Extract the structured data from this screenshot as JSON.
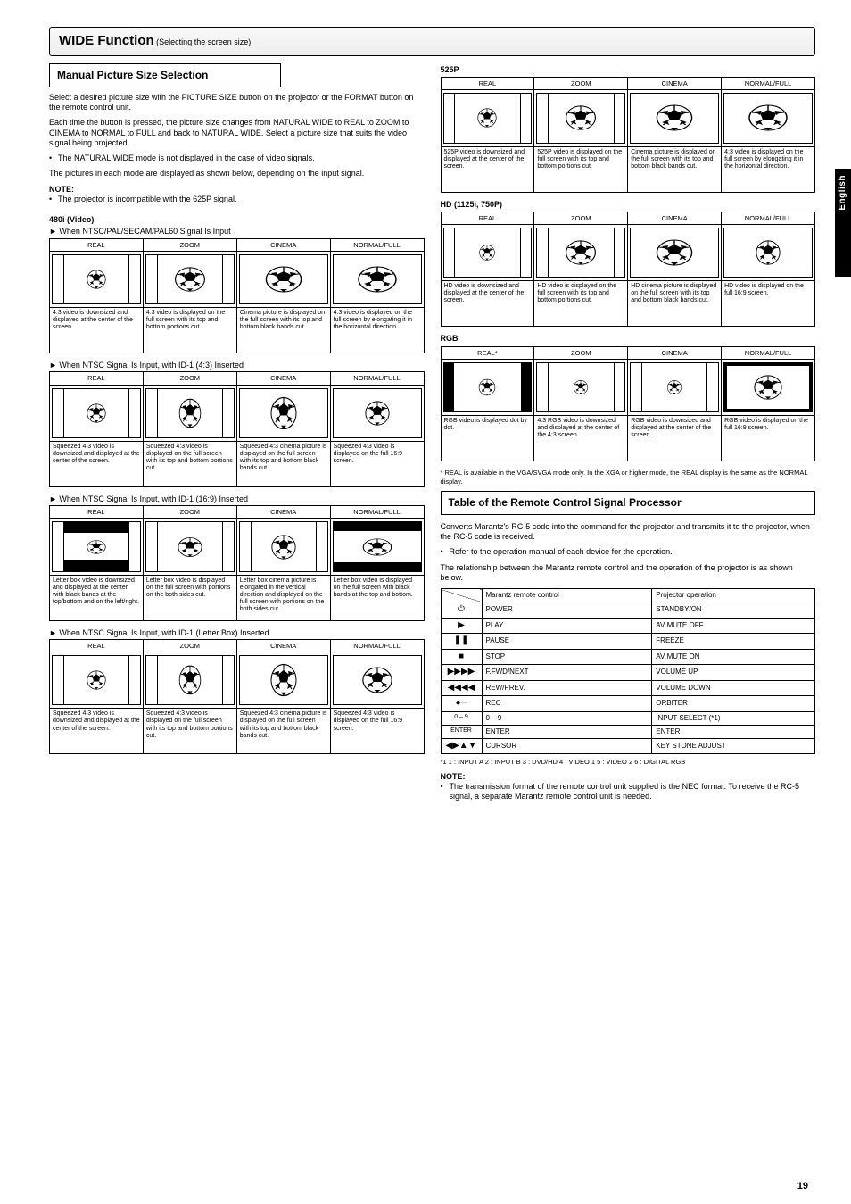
{
  "page_number": "19",
  "header": {
    "title": "WIDE Function",
    "subtitle": "(Selecting the screen size)"
  },
  "manual_section": {
    "title": "Manual Picture Size Selection",
    "p1": "Select a desired picture size with the PICTURE SIZE button on the projector or the FORMAT button on the remote control unit.",
    "p2": "Each time the button is pressed, the picture size changes from NATURAL WIDE to REAL to ZOOM to CINEMA to NORMAL to FULL and back to NATURAL WIDE. Select a picture size that suits the video signal being projected.",
    "bullet1": "The NATURAL WIDE mode is not displayed in the case of video signals.",
    "p3": "The pictures in each mode are displayed as shown below, depending on the input signal.",
    "note_label": "NOTE:",
    "note_text": "The projector is incompatible with the 625P signal."
  },
  "signal_groups": {
    "g_480video": {
      "sig_label": "480i (Video)",
      "tables": [
        {
          "video_label": "► When NTSC/PAL/SECAM/PAL60 Signal Is Input",
          "heads": [
            "REAL",
            "ZOOM",
            "CINEMA",
            "NORMAL/FULL"
          ],
          "screens": [
            "r43_ball_small",
            "r43_ball_wide",
            "r169_ball_wide",
            "r169_ball_stretch"
          ],
          "descs": [
            "4:3 video is downsized and displayed at the center of the screen.",
            "4:3 video is displayed on the full screen with its top and bottom portions cut.",
            "Cinema picture is displayed on the full screen with its top and bottom black bands cut.",
            "4:3 video is displayed on the full screen by elongating it in the horizontal direction."
          ]
        },
        {
          "video_label": "► When NTSC Signal Is Input, with ID-1 (4:3) Inserted",
          "heads": [
            "REAL",
            "ZOOM",
            "CINEMA",
            "NORMAL/FULL"
          ],
          "screens": [
            "r43_ball_small",
            "r43_ball_tall",
            "r169_ball_tall",
            "r169_ball"
          ],
          "descs": [
            "Squeezed 4:3 video is downsized and displayed at the center of the screen.",
            "Squeezed 4:3 video is displayed on the full screen with its top and bottom portions cut.",
            "Squeezed 4:3 cinema picture is displayed on the full screen with its top and bottom black bands cut.",
            "Squeezed 4:3 video is displayed on the full 16:9 screen."
          ]
        },
        {
          "video_label": "► When NTSC Signal Is Input, with ID-1 (16:9) Inserted",
          "heads": [
            "REAL",
            "ZOOM",
            "CINEMA",
            "NORMAL/FULL"
          ],
          "screens": [
            "r4_letterbox",
            "r4_letterbox_z",
            "r4_letterbox_c",
            "r169_lb"
          ],
          "descs": [
            "Letter box video is downsized and displayed at the center with black bands at the top/bottom and on the left/right.",
            "Letter box video is displayed on the full screen with portions on the both sides cut.",
            "Letter box cinema picture is elongated in the vertical direction and displayed on the full screen with portions on the both sides cut.",
            "Letter box video is displayed on the full screen with black bands at the top and bottom."
          ]
        },
        {
          "video_label": "► When NTSC Signal Is Input, with ID-1 (Letter Box) Inserted",
          "heads": [
            "REAL",
            "ZOOM",
            "CINEMA",
            "NORMAL/FULL"
          ],
          "screens": [
            "r43_ball_small",
            "r43_ball_tall",
            "r169_ball_tall",
            "r169_full"
          ],
          "descs": [
            "Squeezed 4:3 video is downsized and displayed at the center of the screen.",
            "Squeezed 4:3 video is displayed on the full screen with its top and bottom portions cut.",
            "Squeezed 4:3 cinema picture is displayed on the full screen with its top and bottom black bands cut.",
            "Squeezed 4:3 video is displayed on the full 16:9 screen."
          ]
        }
      ]
    },
    "g_525p": {
      "sig_label": "525P",
      "tables": [
        {
          "video_label": "",
          "heads": [
            "REAL",
            "ZOOM",
            "CINEMA",
            "NORMAL/FULL"
          ],
          "screens": [
            "r43_ball_small",
            "r43_ball_wide",
            "r169_ball_wide",
            "r169_ball_stretch"
          ],
          "descs": [
            "525P video is downsized and displayed at the center of the screen.",
            "525P video is displayed on the full screen with its top and bottom portions cut.",
            "Cinema picture is displayed on the full screen with its top and bottom black bands cut.",
            "4:3 video is displayed on the full screen by elongating it in the horizontal direction."
          ]
        }
      ]
    },
    "g_hd": {
      "sig_label": "HD (1125i, 750P)",
      "tables": [
        {
          "video_label": "",
          "heads": [
            "REAL",
            "ZOOM",
            "CINEMA",
            "NORMAL/FULL"
          ],
          "screens": [
            "r43_ball_small_sq",
            "r43_ball_wide",
            "r169_ball_wide",
            "r169_ball"
          ],
          "descs": [
            "HD video is downsized and displayed at the center of the screen.",
            "HD video is displayed on the full screen with its top and bottom portions cut.",
            "HD cinema picture is displayed on the full screen with its top and bottom black bands cut.",
            "HD video is displayed on the full 16:9 screen."
          ]
        }
      ]
    },
    "g_rgb": {
      "sig_label": "RGB",
      "tables": [
        {
          "video_label": "",
          "heads": [
            "REAL*",
            "ZOOM",
            "CINEMA",
            "NORMAL/FULL"
          ],
          "screens": [
            "r_sidebars",
            "r43_ball_small_t",
            "r43_ball_small_t",
            "r169_black"
          ],
          "descs": [
            "RGB video is displayed dot by dot.",
            "4:3 RGB video is downsized and displayed at the center of the 4:3 screen.",
            "RGB video is downsized and displayed at the center of the screen.",
            "RGB video is displayed on the full 16:9 screen."
          ],
          "footnote": "* REAL is available in the VGA/SVGA mode only. In the XGA or higher mode, the REAL display is the same as the NORMAL display."
        }
      ]
    }
  },
  "remote": {
    "title": "Table of the Remote Control Signal Processor",
    "p1": "Converts Marantz's RC-5 code into the command for the projector and transmits it to the projector, when the RC-5 code is received.",
    "bullet1": "Refer to the operation manual of each device for the operation.",
    "p2": "The relationship between the Marantz remote control and the operation of the projector is as shown below.",
    "headers": [
      "",
      "Marantz remote control",
      "Projector operation"
    ],
    "rows": [
      {
        "sym": "power",
        "a": "POWER",
        "b": "STANDBY/ON"
      },
      {
        "sym": "play",
        "a": "PLAY",
        "b": "AV MUTE OFF"
      },
      {
        "sym": "pause",
        "a": "PAUSE",
        "b": "FREEZE"
      },
      {
        "sym": "stop",
        "a": "STOP",
        "b": "AV MUTE ON"
      },
      {
        "sym": "ffwd",
        "a": "F.FWD/NEXT",
        "b": "VOLUME UP"
      },
      {
        "sym": "rew",
        "a": "REW/PREV.",
        "b": "VOLUME DOWN"
      },
      {
        "sym": "rec",
        "a": "REC",
        "b": "ORBITER"
      },
      {
        "sym": "text",
        "a": "0 – 9",
        "b": "INPUT SELECT (*1)"
      },
      {
        "sym": "text2",
        "a": "ENTER",
        "b": "ENTER"
      },
      {
        "sym": "nav",
        "a": "CURSOR",
        "b": "KEY STONE ADJUST"
      }
    ],
    "legend": "*1  1 : INPUT A   2 : INPUT B   3 : DVD/HD   4 : VIDEO 1   5 : VIDEO 2   6 : DIGITAL RGB",
    "note_label": "NOTE:",
    "note_bullet": "The transmission format of the remote control unit supplied is the NEC format. To receive the RC-5 signal, a separate Marantz remote control unit is needed."
  },
  "sidebar_label": "English",
  "colors": {
    "text": "#000000",
    "bg": "#ffffff",
    "mask": "#000000"
  }
}
